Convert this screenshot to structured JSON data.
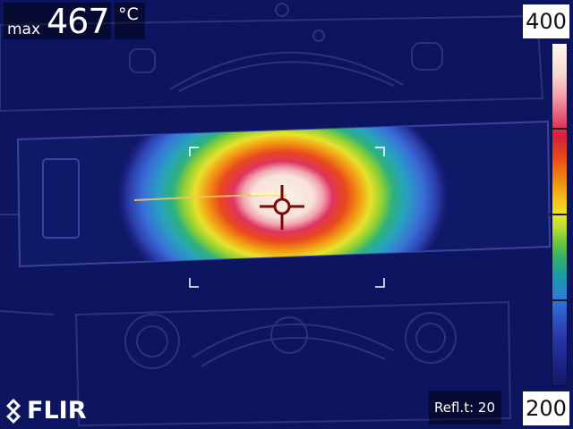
{
  "measurement": {
    "max_label": "max",
    "max_value": "467",
    "unit": "°C"
  },
  "scale": {
    "max": "400",
    "min": "200",
    "colors": [
      "#fcf8f0",
      "#e85a7a",
      "#d81b3e",
      "#f7c41a",
      "#6ec83a",
      "#2e7ed8",
      "#141a66"
    ]
  },
  "parameters": {
    "reflected_temp": "Refl.t: 20"
  },
  "brand": {
    "logo_text": "FLIR"
  },
  "icons": {
    "crosshair": "crosshair-icon",
    "focus_box": "focus-brackets-icon",
    "logo": "flir-logo-icon"
  }
}
